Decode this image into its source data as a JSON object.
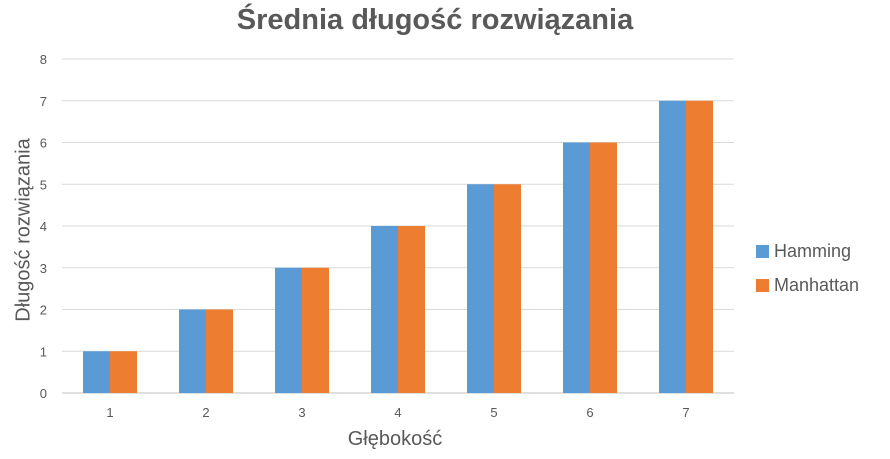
{
  "chart_data": {
    "type": "bar",
    "title": "Średnia długość rozwiązania",
    "xlabel": "Głębokość",
    "ylabel": "Długość rozwiązania",
    "categories": [
      "1",
      "2",
      "3",
      "4",
      "5",
      "6",
      "7"
    ],
    "series": [
      {
        "name": "Hamming",
        "values": [
          1,
          2,
          3,
          4,
          5,
          6,
          7
        ],
        "color": "#5B9BD5"
      },
      {
        "name": "Manhattan",
        "values": [
          1,
          2,
          3,
          4,
          5,
          6,
          7
        ],
        "color": "#ED7D31"
      }
    ],
    "ylim": [
      0,
      8
    ],
    "yticks": [
      "0",
      "1",
      "2",
      "3",
      "4",
      "5",
      "6",
      "7",
      "8"
    ],
    "grid": true,
    "legend_position": "right"
  }
}
